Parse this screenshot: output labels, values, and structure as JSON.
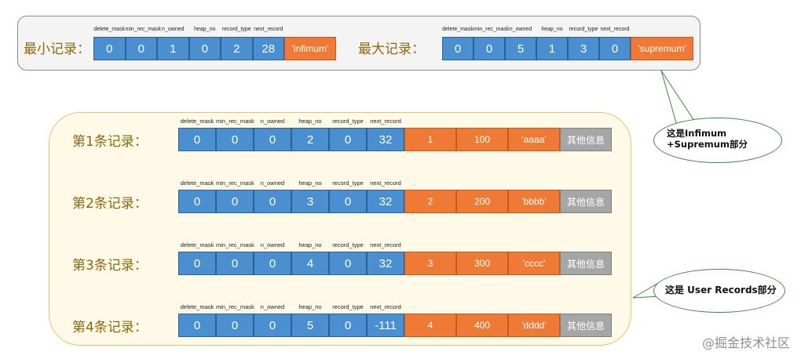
{
  "headers": [
    "delete_mask",
    "min_rec_mask",
    "n_owned",
    "heap_no",
    "record_type",
    "next_record"
  ],
  "min_record": {
    "label": "最小记录：",
    "values": [
      "0",
      "0",
      "1",
      "0",
      "2",
      "28"
    ],
    "data": [
      "'infimum'"
    ]
  },
  "max_record": {
    "label": "最大记录：",
    "values": [
      "0",
      "0",
      "5",
      "1",
      "3",
      "0"
    ],
    "data": [
      "'supremum'"
    ]
  },
  "user_records": [
    {
      "label": "第1条记录：",
      "values": [
        "0",
        "0",
        "0",
        "2",
        "0",
        "32"
      ],
      "data": [
        "1",
        "100",
        "'aaaa'"
      ],
      "other": "其他信息"
    },
    {
      "label": "第2条记录：",
      "values": [
        "0",
        "0",
        "0",
        "3",
        "0",
        "32"
      ],
      "data": [
        "2",
        "200",
        "'bbbb'"
      ],
      "other": "其他信息"
    },
    {
      "label": "第3条记录：",
      "values": [
        "0",
        "0",
        "0",
        "4",
        "0",
        "32"
      ],
      "data": [
        "3",
        "300",
        "'cccc'"
      ],
      "other": "其他信息"
    },
    {
      "label": "第4条记录：",
      "values": [
        "0",
        "0",
        "0",
        "5",
        "0",
        "-111"
      ],
      "data": [
        "4",
        "400",
        "'dddd'"
      ],
      "other": "其他信息"
    }
  ],
  "callouts": {
    "infimum_supremum": "这是Infimum +Supremum部分",
    "user_records": "这是 User Records部分"
  },
  "watermark": "@掘金技术社区",
  "colors": {
    "header_cell": "#4a8fd0",
    "data_cell": "#ee7a35",
    "other_cell": "#a6a6a6",
    "label_text": "#8a6a10"
  }
}
